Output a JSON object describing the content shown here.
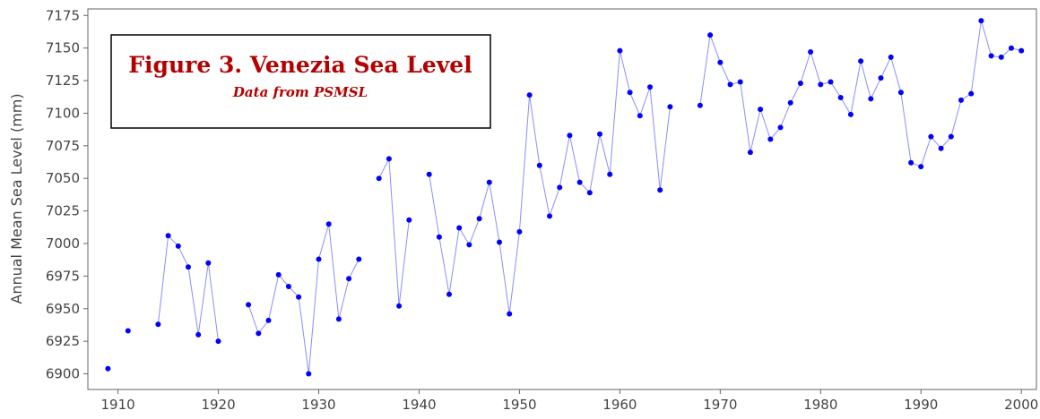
{
  "chart_data": {
    "type": "line",
    "title": "Figure 3. Venezia Sea Level",
    "subtitle": "Data from PSMSL",
    "xlabel": "",
    "ylabel": "Annual Mean Sea Level (mm)",
    "xlim": [
      1907,
      2001.5
    ],
    "ylim": [
      6888,
      7180
    ],
    "x_ticks": [
      1910,
      1920,
      1930,
      1940,
      1950,
      1960,
      1970,
      1980,
      1990,
      2000
    ],
    "y_ticks": [
      6900,
      6925,
      6950,
      6975,
      7000,
      7025,
      7050,
      7075,
      7100,
      7125,
      7150,
      7175
    ],
    "grid": false,
    "colors": {
      "line": "#8c8cff",
      "marker": "#0000ff",
      "title": "#b30000",
      "axis": "#444444"
    },
    "series": [
      {
        "x": [
          1909,
          1911,
          1914,
          1915,
          1916,
          1917,
          1918,
          1919,
          1920,
          1923,
          1924,
          1925,
          1926,
          1927,
          1928,
          1929,
          1930,
          1931,
          1932,
          1933,
          1934,
          1936,
          1937,
          1938,
          1939,
          1941,
          1942,
          1943,
          1944,
          1945,
          1946,
          1947,
          1948,
          1949,
          1950,
          1951,
          1952,
          1953,
          1954,
          1955,
          1956,
          1957,
          1958,
          1959,
          1960,
          1961,
          1962,
          1963,
          1964,
          1965,
          1968,
          1969,
          1970,
          1971,
          1972,
          1973,
          1974,
          1975,
          1976,
          1977,
          1978,
          1979,
          1980,
          1981,
          1982,
          1983,
          1984,
          1985,
          1986,
          1987,
          1988,
          1989,
          1990,
          1991,
          1992,
          1993,
          1994,
          1995,
          1996,
          1997,
          1998,
          1999,
          2000
        ],
        "values": [
          6904,
          6933,
          6938,
          7006,
          6998,
          6982,
          6930,
          6985,
          6925,
          6953,
          6931,
          6941,
          6976,
          6967,
          6959,
          6900,
          6988,
          7015,
          6942,
          6973,
          6988,
          7050,
          7065,
          6952,
          7018,
          7053,
          7005,
          6961,
          7012,
          6999,
          7019,
          7047,
          7001,
          6946,
          7009,
          7114,
          7060,
          7021,
          7043,
          7083,
          7047,
          7039,
          7084,
          7053,
          7148,
          7116,
          7098,
          7120,
          7041,
          7105,
          7106,
          7160,
          7139,
          7122,
          7124,
          7070,
          7103,
          7080,
          7089,
          7108,
          7123,
          7147,
          7122,
          7124,
          7112,
          7099,
          7140,
          7111,
          7127,
          7143,
          7116,
          7062,
          7059,
          7082,
          7073,
          7082,
          7110,
          7115,
          7171,
          7144,
          7143,
          7150,
          7148
        ]
      }
    ]
  }
}
